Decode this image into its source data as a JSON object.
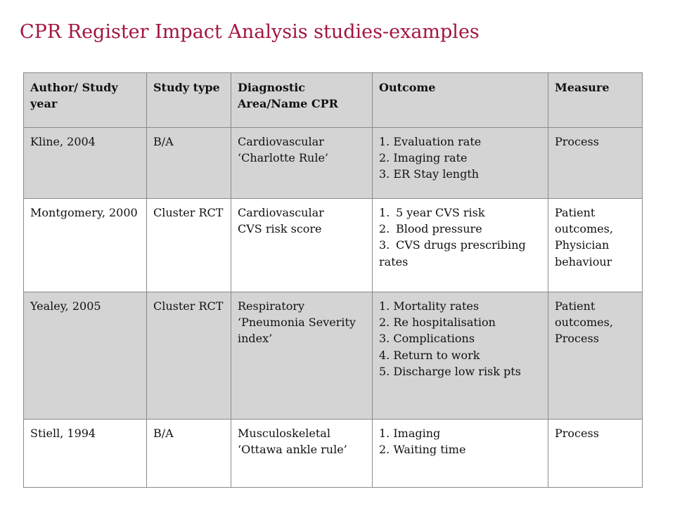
{
  "title": "CPR Register Impact Analysis studies-examples",
  "table": {
    "headers": [
      "Author/ Study year",
      "Study type",
      "Diagnostic Area/Name CPR",
      "Outcome",
      "Measure"
    ],
    "rows": [
      {
        "author": "Kline, 2004",
        "study_type": "B/A",
        "diagnostic": [
          "Cardiovascular",
          "‘Charlotte Rule’"
        ],
        "outcome": [
          "1. Evaluation rate",
          "2. Imaging rate",
          "3. ER Stay length"
        ],
        "measure": "Process"
      },
      {
        "author": "Montgomery, 2000",
        "study_type": "Cluster RCT",
        "diagnostic": [
          "Cardiovascular",
          "CVS risk score"
        ],
        "outcome_num": [
          "1.",
          "2.",
          "3."
        ],
        "outcome": [
          "5 year CVS risk",
          "Blood pressure",
          "CVS drugs prescribing rates"
        ],
        "measure": "Patient outcomes, Physician behaviour"
      },
      {
        "author": "Yealey, 2005",
        "study_type": "Cluster RCT",
        "diagnostic": [
          "Respiratory",
          "‘Pneumonia Severity index’"
        ],
        "outcome": [
          "1. Mortality rates",
          "2. Re hospitalisation",
          "3. Complications",
          "4. Return to work",
          "5. Discharge low risk pts"
        ],
        "measure": "Patient outcomes, Process"
      },
      {
        "author": "Stiell, 1994",
        "study_type": "B/A",
        "diagnostic": [
          "Musculoskeletal",
          "‘Ottawa ankle rule’"
        ],
        "outcome": [
          "1.  Imaging",
          "2. Waiting time"
        ],
        "measure": "Process"
      }
    ]
  },
  "colors": {
    "title": "#a3163f",
    "shade": "#d4d4d4",
    "border": "#8a8a8a"
  }
}
